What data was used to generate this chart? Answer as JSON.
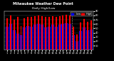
{
  "title": "Milwaukee Weather Dew Point",
  "subtitle": "Daily High/Low",
  "high_values": [
    74,
    80,
    70,
    76,
    55,
    74,
    76,
    76,
    78,
    80,
    78,
    76,
    76,
    78,
    76,
    78,
    80,
    82,
    80,
    54,
    36,
    64,
    72,
    66,
    68
  ],
  "low_values": [
    54,
    60,
    46,
    38,
    34,
    52,
    56,
    54,
    58,
    60,
    58,
    52,
    54,
    58,
    54,
    58,
    60,
    62,
    60,
    34,
    20,
    44,
    52,
    46,
    48
  ],
  "labels": [
    "1",
    "2",
    "3",
    "4",
    "5",
    "6",
    "7",
    "8",
    "9",
    "10",
    "11",
    "12",
    "13",
    "14",
    "15",
    "16",
    "17",
    "18",
    "19",
    "20",
    "21",
    "22",
    "23",
    "24",
    "25"
  ],
  "high_color": "#ff0000",
  "low_color": "#0000ff",
  "bg_color": "#000000",
  "plot_bg": "#000000",
  "title_color": "#ffffff",
  "grid_color": "#444444",
  "ylim": [
    0,
    90
  ],
  "yticks": [
    10,
    20,
    30,
    40,
    50,
    60,
    70,
    80,
    90
  ],
  "bar_width": 0.4,
  "legend_high": "High",
  "legend_low": "Low",
  "dashed_separator": 19
}
